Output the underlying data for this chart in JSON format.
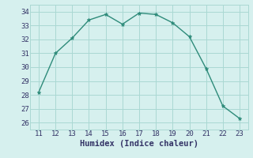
{
  "x": [
    11,
    12,
    13,
    14,
    15,
    16,
    17,
    18,
    19,
    20,
    21,
    22,
    23
  ],
  "y": [
    28.2,
    31.0,
    32.1,
    33.4,
    33.8,
    33.1,
    33.9,
    33.8,
    33.2,
    32.2,
    29.9,
    27.2,
    26.3
  ],
  "xlabel": "Humidex (Indice chaleur)",
  "ylim": [
    25.5,
    34.5
  ],
  "xlim": [
    10.5,
    23.5
  ],
  "yticks": [
    26,
    27,
    28,
    29,
    30,
    31,
    32,
    33,
    34
  ],
  "xticks": [
    11,
    12,
    13,
    14,
    15,
    16,
    17,
    18,
    19,
    20,
    21,
    22,
    23
  ],
  "line_color": "#2e8b7a",
  "bg_color": "#d6f0ee",
  "grid_color": "#aad8d3",
  "xlabel_fontsize": 7.5,
  "tick_fontsize": 6.5
}
